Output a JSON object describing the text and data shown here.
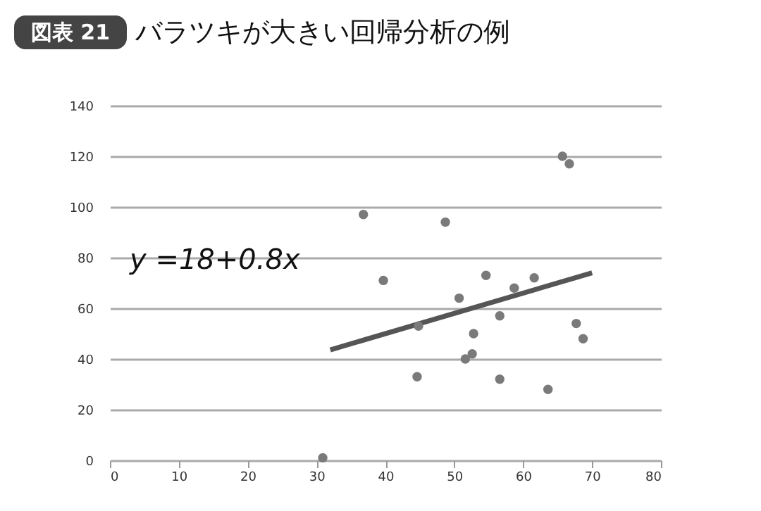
{
  "chart_data": {
    "type": "scatter",
    "title": "バラツキが大きい回帰分析の例",
    "annotations": [
      "図表 21",
      "y =18+0.8x"
    ],
    "series": [
      {
        "color": "#7a7a7a",
        "marker": "circle",
        "x": [
          30.9,
          36.8,
          39.7,
          44.6,
          44.8,
          48.7,
          50.7,
          51.6,
          52.6,
          52.8,
          54.6,
          56.6,
          56.6,
          58.7,
          61.6,
          63.6,
          65.7,
          66.7,
          67.7,
          68.7
        ],
        "values": [
          1,
          97,
          71,
          33,
          53,
          94,
          64,
          40,
          42,
          50,
          73,
          57,
          32,
          68,
          72,
          28,
          120,
          117,
          54,
          48
        ]
      },
      {
        "type": "line",
        "color": "#555555",
        "x": [
          32,
          70
        ],
        "values": [
          43.6,
          74
        ]
      }
    ],
    "xlim": [
      0,
      80
    ],
    "xticks": [
      0,
      10,
      20,
      30,
      40,
      50,
      60,
      70,
      80
    ],
    "ylim": [
      0,
      140
    ],
    "yticks": [
      0,
      20,
      40,
      60,
      80,
      100,
      120,
      140
    ],
    "grid": "y"
  }
}
